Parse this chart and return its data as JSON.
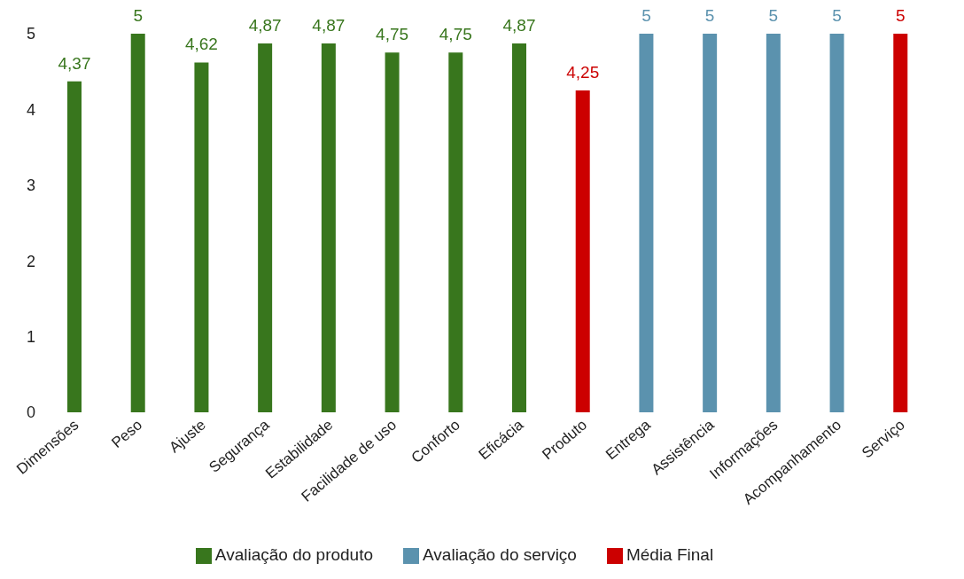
{
  "chart_data": {
    "type": "bar",
    "categories": [
      "Dimensões",
      "Peso",
      "Ajuste",
      "Segurança",
      "Estabilidade",
      "Facilidade de uso",
      "Conforto",
      "Eficácia",
      "Produto",
      "Entrega",
      "Assistência",
      "Informações",
      "Acompanhamento",
      "Serviço"
    ],
    "series": [
      {
        "name": "Avaliação do produto",
        "color": "#38761d",
        "values": [
          4.37,
          5,
          4.62,
          4.87,
          4.87,
          4.75,
          4.75,
          4.87,
          null,
          null,
          null,
          null,
          null,
          null
        ],
        "value_labels": [
          "4,37",
          "5",
          "4,62",
          "4,87",
          "4,87",
          "4,75",
          "4,75",
          "4,87",
          null,
          null,
          null,
          null,
          null,
          null
        ]
      },
      {
        "name": "Avaliação do serviço",
        "color": "#5b92ae",
        "values": [
          null,
          null,
          null,
          null,
          null,
          null,
          null,
          null,
          null,
          5,
          5,
          5,
          5,
          null
        ],
        "value_labels": [
          null,
          null,
          null,
          null,
          null,
          null,
          null,
          null,
          null,
          "5",
          "5",
          "5",
          "5",
          null
        ]
      },
      {
        "name": "Média Final",
        "color": "#cc0000",
        "values": [
          null,
          null,
          null,
          null,
          null,
          null,
          null,
          null,
          4.25,
          null,
          null,
          null,
          null,
          5
        ],
        "value_labels": [
          null,
          null,
          null,
          null,
          null,
          null,
          null,
          null,
          "4,25",
          null,
          null,
          null,
          null,
          "5"
        ]
      }
    ],
    "ylim": [
      0,
      5
    ],
    "yticks": [
      0,
      1,
      2,
      3,
      4,
      5
    ],
    "grid": false,
    "legend": "bottom"
  }
}
